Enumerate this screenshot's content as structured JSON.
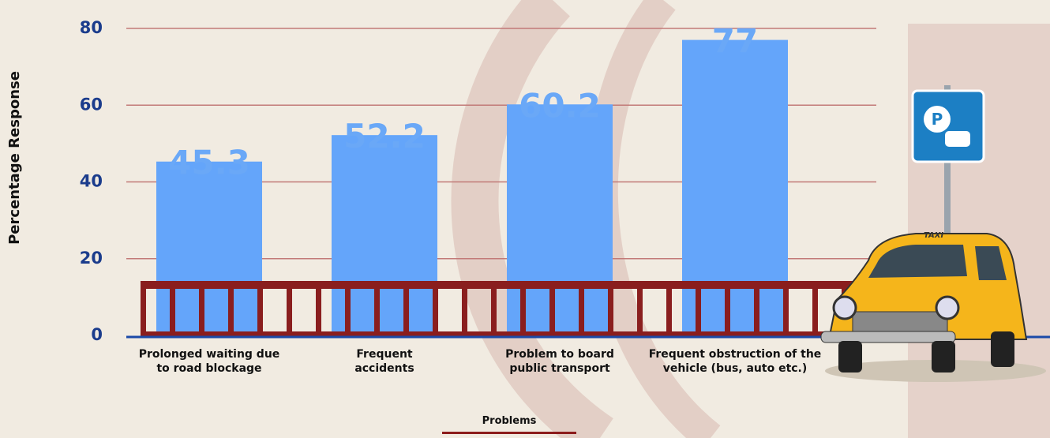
{
  "chart_data": {
    "type": "bar",
    "categories": [
      "Prolonged waiting due to road blockage",
      "Frequent accidents",
      "Problem to board public transport",
      "Frequent obstruction of the vehicle (bus, auto etc.)"
    ],
    "values": [
      45.3,
      52.2,
      60.2,
      77
    ],
    "color": "#64a5fa",
    "ylabel": "Percentage Response",
    "xlabel": "Problems",
    "ylim": [
      0,
      80
    ],
    "yticks": [
      0,
      20,
      40,
      60,
      80
    ],
    "grid": true
  }
}
